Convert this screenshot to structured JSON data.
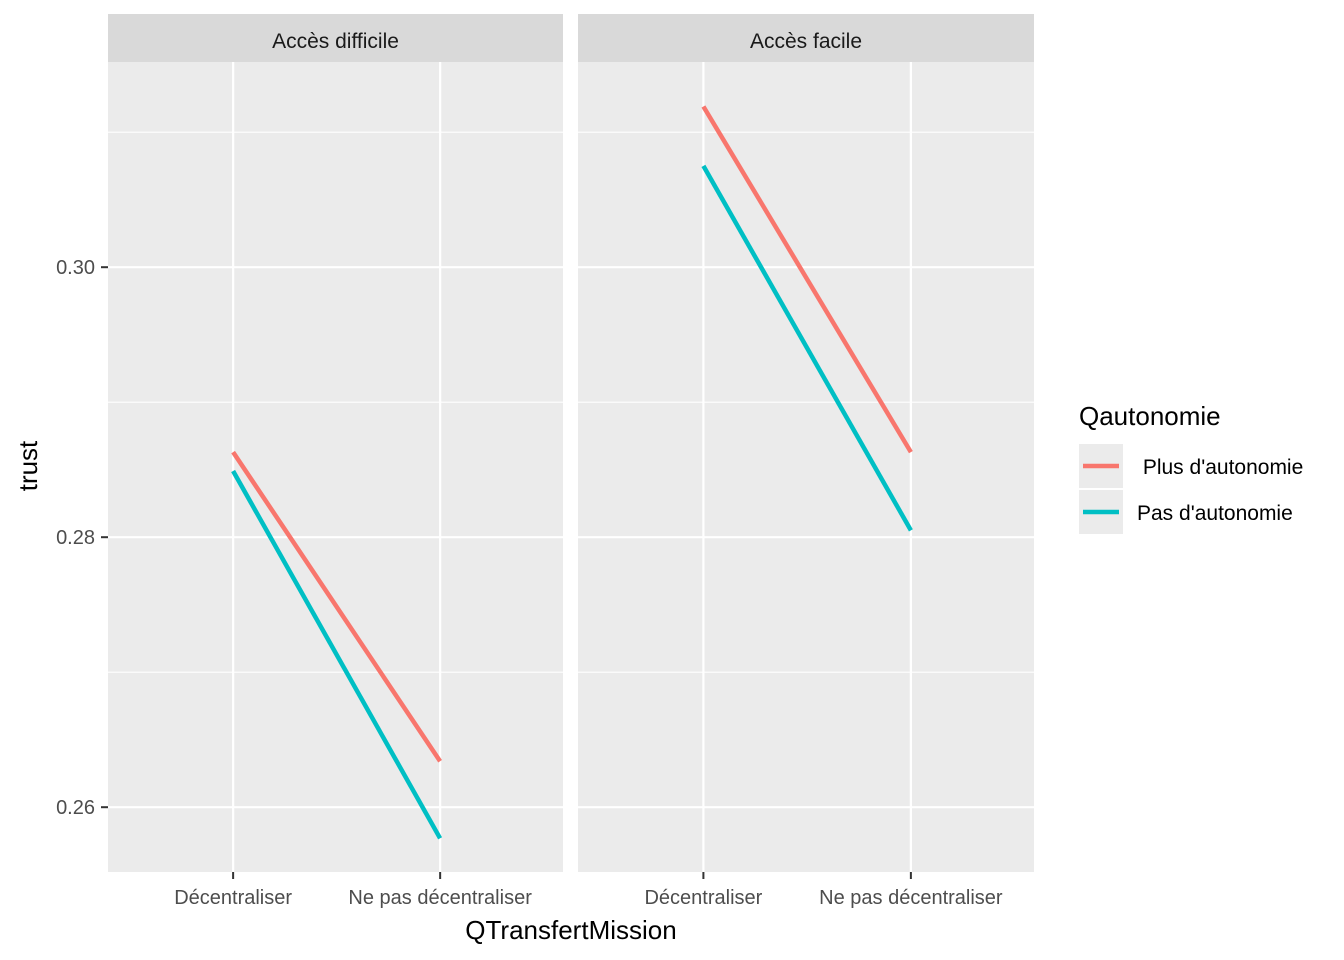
{
  "chart_data": {
    "type": "line",
    "xlabel": "QTransfertMission",
    "ylabel": "trust",
    "categories": [
      "Décentraliser",
      "Ne pas décentraliser"
    ],
    "ylim": [
      0.2552,
      0.3152
    ],
    "yticks": [
      0.26,
      0.28,
      0.3
    ],
    "ytick_labels": [
      "0.26",
      "0.28",
      "0.30"
    ],
    "grid": true,
    "legend": {
      "title": "Qautonomie",
      "placement": "right",
      "entries": [
        " Plus d'autonomie",
        "Pas d'autonomie"
      ]
    },
    "panels": [
      {
        "title": "Accès difficile",
        "series": [
          {
            "name": " Plus d'autonomie",
            "color": "#F8766D",
            "values": [
              0.2863,
              0.2634
            ]
          },
          {
            "name": "Pas d'autonomie",
            "color": "#00BFC4",
            "values": [
              0.2849,
              0.2577
            ]
          }
        ]
      },
      {
        "title": "Accès facile",
        "series": [
          {
            "name": " Plus d'autonomie",
            "color": "#F8766D",
            "values": [
              0.3119,
              0.2863
            ]
          },
          {
            "name": "Pas d'autonomie",
            "color": "#00BFC4",
            "values": [
              0.3075,
              0.2805
            ]
          }
        ]
      }
    ]
  }
}
